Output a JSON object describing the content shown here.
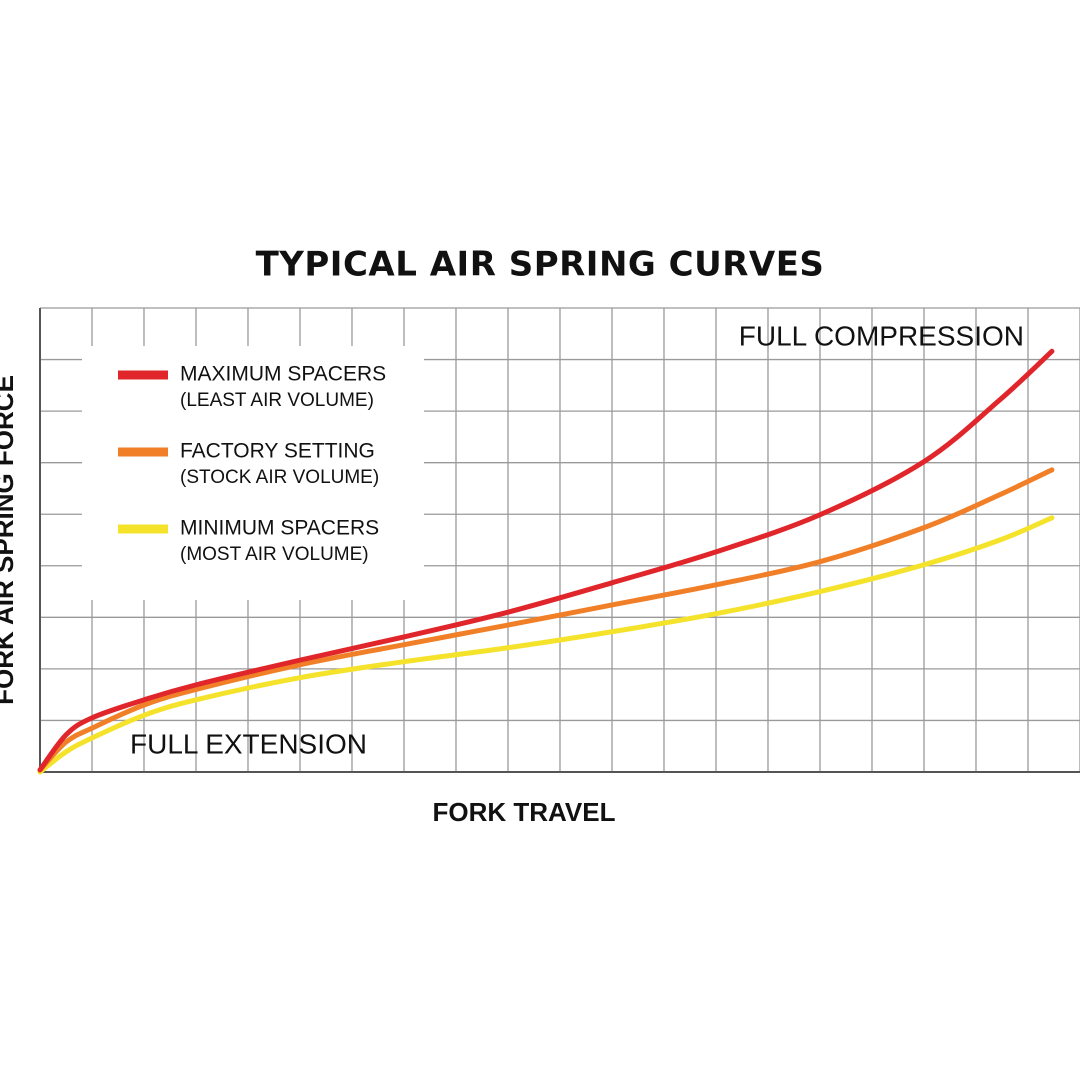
{
  "chart_data": {
    "type": "line",
    "title": "TYPICAL AIR SPRING CURVES",
    "x_label": "FORK TRAVEL",
    "y_label": "FORK AIR SPRING FORCE",
    "annotations": [
      "FULL COMPRESSION",
      "FULL EXTENSION"
    ],
    "x": [
      0,
      0.5,
      1,
      2,
      3,
      5,
      7,
      9,
      11,
      13,
      15,
      17,
      18.46,
      19.46
    ],
    "series": [
      {
        "name": "MAXIMUM SPACERS",
        "subtitle": "(LEAST AIR VOLUME)",
        "color": "#e0262a",
        "values": [
          0.04,
          0.72,
          1.05,
          1.4,
          1.69,
          2.17,
          2.62,
          3.1,
          3.67,
          4.27,
          4.99,
          6.02,
          7.22,
          8.16
        ]
      },
      {
        "name": "FACTORY SETTING",
        "subtitle": "(STOCK AIR VOLUME)",
        "color": "#f07f28",
        "values": [
          0.04,
          0.58,
          0.85,
          1.3,
          1.6,
          2.08,
          2.47,
          2.85,
          3.24,
          3.63,
          4.08,
          4.74,
          5.38,
          5.86
        ]
      },
      {
        "name": "MINIMUM SPACERS",
        "subtitle": "(MOST AIR VOLUME)",
        "color": "#f5e22a",
        "values": [
          0,
          0.39,
          0.66,
          1.1,
          1.4,
          1.83,
          2.14,
          2.41,
          2.72,
          3.07,
          3.5,
          4.02,
          4.5,
          4.93
        ]
      }
    ],
    "xlim": [
      0,
      20
    ],
    "ylim": [
      0,
      9
    ],
    "xticks": [
      0,
      1,
      2,
      3,
      4,
      5,
      6,
      7,
      8,
      9,
      10,
      11,
      12,
      13,
      14,
      15,
      16,
      17,
      18,
      19,
      20
    ],
    "yticks": [
      0,
      1,
      2,
      3,
      4,
      5,
      6,
      7,
      8,
      9
    ],
    "grid": true
  }
}
